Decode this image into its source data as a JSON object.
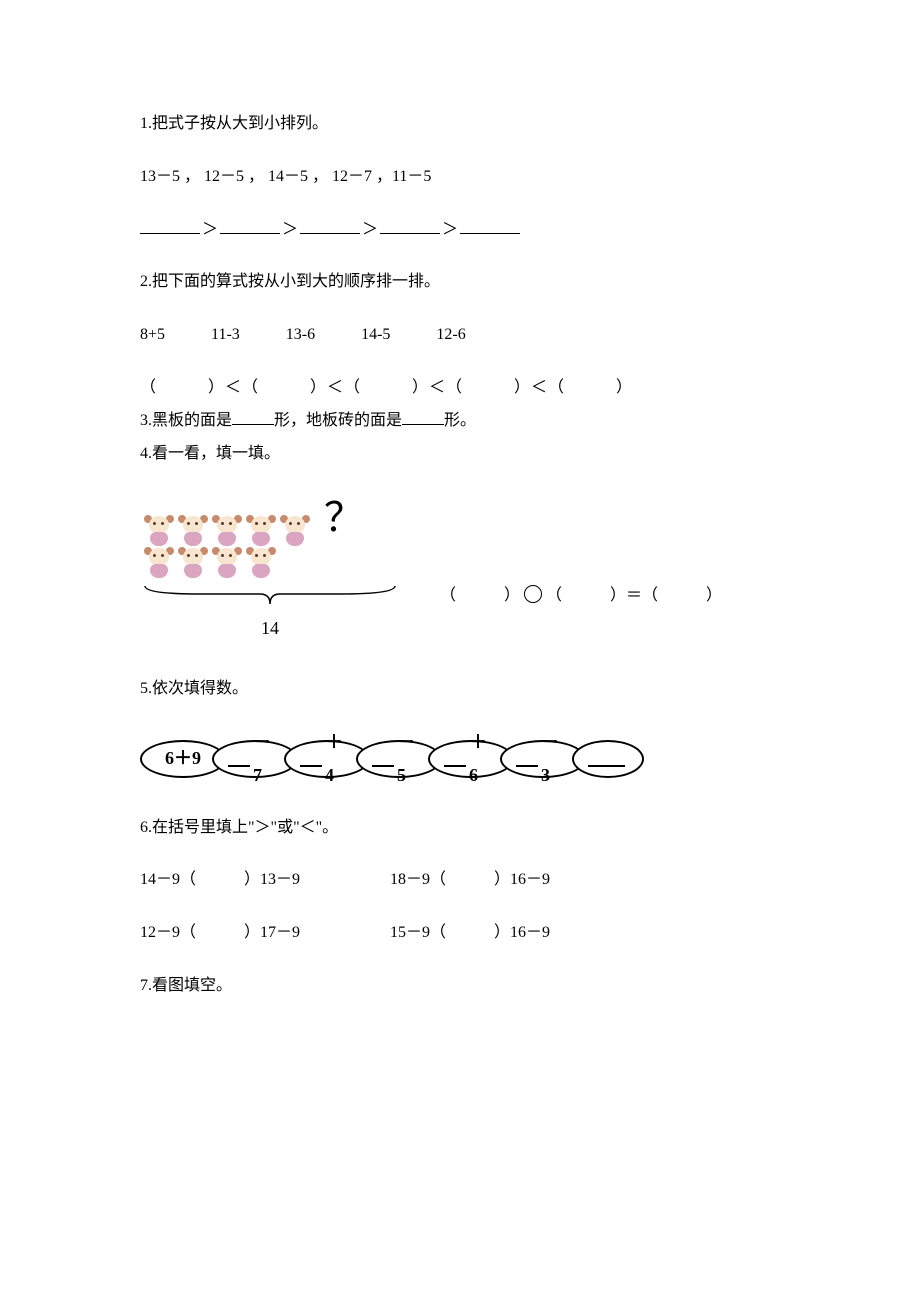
{
  "q1": {
    "title": "1.把式子按从大到小排列。",
    "exprs": "13－5 ，  12－5 ，  14－5 ，  12－7 ，11－5",
    "sep": "＞"
  },
  "q2": {
    "title": "2.把下面的算式按从小到大的顺序排一排。",
    "items": [
      "8+5",
      "11-3",
      "13-6",
      "14-5",
      "12-6"
    ],
    "row": "（　　　）＜（　　　）＜（　　　）＜（　　　）＜（　　　）"
  },
  "q3": {
    "text": "3.黑板的面是_____形，地板砖的面是_____形。"
  },
  "q4": {
    "title": "4.看一看，填一填。",
    "qmark": "？",
    "total": "14",
    "monkey_rows": [
      5,
      4
    ],
    "eq": "（　　　）",
    "eqmid": "（　　　）＝（　　　）"
  },
  "q5": {
    "title": "5.依次填得数。",
    "start": "6＋9",
    "ops": [
      "－ 7",
      "＋ 4",
      "－ 5",
      "＋ 6",
      "－ 3"
    ]
  },
  "q6": {
    "title": "6.在括号里填上\"＞\"或\"＜\"。",
    "rows": [
      {
        "a": "14－9（　　　）13－9",
        "b": "18－9（　　　）16－9"
      },
      {
        "a": "12－9（　　　）17－9",
        "b": "15－9（　　　）16－9"
      }
    ]
  },
  "q7": {
    "title": "7.看图填空。"
  }
}
